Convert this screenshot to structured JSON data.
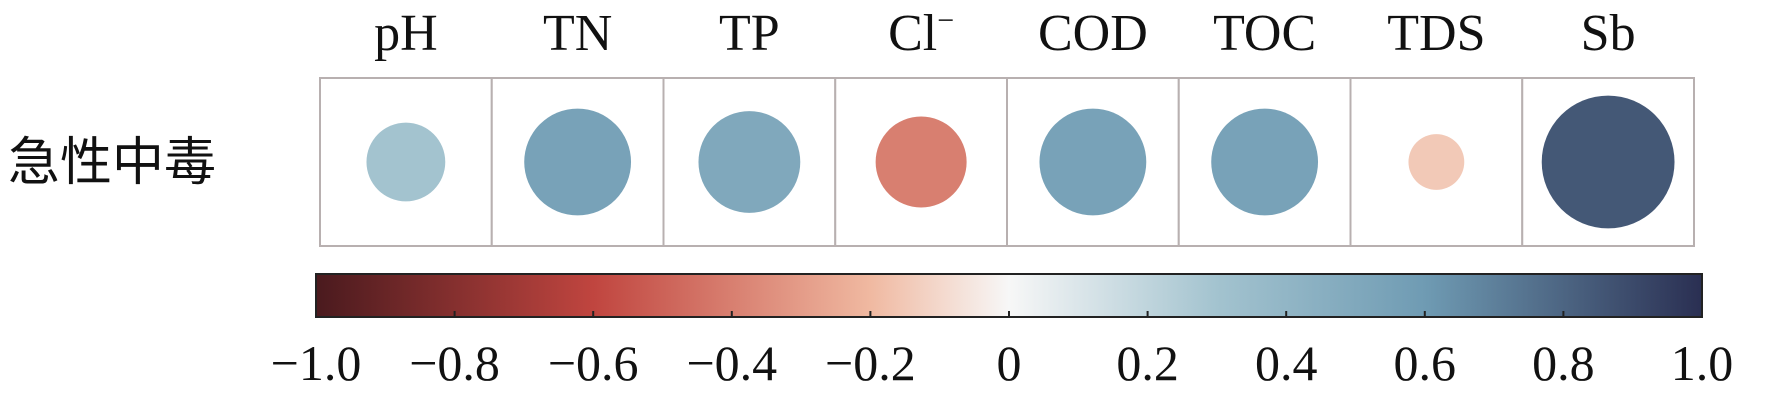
{
  "chart_data": {
    "type": "heatmap",
    "rows": [
      "急性中毒"
    ],
    "columns": [
      {
        "base": "pH",
        "sup": ""
      },
      {
        "base": "TN",
        "sup": ""
      },
      {
        "base": "TP",
        "sup": ""
      },
      {
        "base": "Cl",
        "sup": "−"
      },
      {
        "base": "COD",
        "sup": ""
      },
      {
        "base": "TOC",
        "sup": ""
      },
      {
        "base": "TDS",
        "sup": ""
      },
      {
        "base": "Sb",
        "sup": ""
      }
    ],
    "values": [
      [
        0.3,
        0.55,
        0.5,
        -0.4,
        0.55,
        0.55,
        -0.15,
        0.85
      ]
    ],
    "colorbar": {
      "min": -1.0,
      "max": 1.0,
      "ticks": [
        -1.0,
        -0.8,
        -0.6,
        -0.4,
        -0.2,
        0,
        0.2,
        0.4,
        0.6,
        0.8,
        1.0
      ],
      "tick_labels": [
        "−1.0",
        "−0.8",
        "−0.6",
        "−0.4",
        "−0.2",
        "0",
        "0.2",
        "0.4",
        "0.6",
        "0.8",
        "1.0"
      ]
    },
    "colors": {
      "negative_end": "#4a1a1e",
      "negative_mid": "#c0453f",
      "negative_light": "#f0b9a1",
      "zero": "#f7f7f7",
      "positive_light": "#a3c3cf",
      "positive_mid": "#6f9bb3",
      "positive_end": "#2a2f52",
      "cell_border": "#b8b0b0"
    }
  }
}
